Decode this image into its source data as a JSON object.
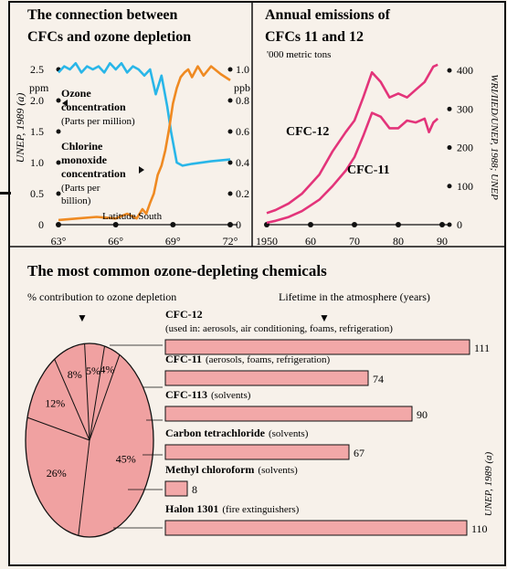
{
  "colors": {
    "background": "#f7f1ea",
    "ozone_line": "#29b6e8",
    "chlorine_line": "#ef8a22",
    "cfc_lines": "#e3347a",
    "bar_fill": "#f2a8a8",
    "pie_fill": "#f0a1a1",
    "ink": "#111111"
  },
  "panel_left": {
    "title_line1": "The connection between",
    "title_line2": "CFCs and ozone depletion",
    "source": "UNEP, 1989 (a)",
    "left_unit": "ppm",
    "right_unit": "ppb",
    "ozone_label_1": "Ozone",
    "ozone_label_2": "concentration",
    "ozone_label_3": "(Parts per million)",
    "clo_label_1": "Chlorine",
    "clo_label_2": "monoxide",
    "clo_label_3": "concentration",
    "clo_label_4": "(Parts per",
    "clo_label_5": "billion)",
    "xlabel": "Latitude South"
  },
  "panel_right": {
    "title_line1": "Annual emissions of",
    "title_line2": "CFCs 11 and 12",
    "unit": "'000 metric tons",
    "source": "WRI/IIED/UNEP, 1988; UNEP",
    "label_cfc12": "CFC-12",
    "label_cfc11": "CFC-11"
  },
  "panel_bottom": {
    "title": "The most common ozone-depleting chemicals",
    "pie_heading": "% contribution to ozone depletion",
    "bar_heading": "Lifetime in the atmosphere (years)",
    "source": "UNEP, 1989 (a)",
    "pointer": "▼"
  },
  "chart_data": [
    {
      "type": "line",
      "title": "The connection between CFCs and ozone depletion",
      "xlabel": "Latitude South",
      "x_ticks": [
        "63°",
        "66°",
        "69°",
        "72°"
      ],
      "xlim": [
        63,
        72
      ],
      "left_axis": {
        "unit": "ppm",
        "ylim": [
          0,
          2.5
        ],
        "ticks": [
          "0",
          "0.5",
          "1.0",
          "1.5",
          "2.0",
          "2.5"
        ]
      },
      "right_axis": {
        "unit": "ppb",
        "ylim": [
          0,
          1.0
        ],
        "ticks": [
          "0",
          "0.2",
          "0.4",
          "0.6",
          "0.8",
          "1.0"
        ]
      },
      "series": [
        {
          "name": "Ozone concentration",
          "axis": "left",
          "x": [
            63.0,
            63.3,
            63.6,
            63.9,
            64.2,
            64.5,
            64.8,
            65.1,
            65.4,
            65.7,
            66.0,
            66.3,
            66.6,
            66.9,
            67.2,
            67.5,
            67.8,
            68.1,
            68.4,
            68.7,
            68.9,
            69.2,
            69.5,
            70.0,
            71.0,
            72.0
          ],
          "y": [
            2.45,
            2.55,
            2.5,
            2.6,
            2.45,
            2.55,
            2.5,
            2.55,
            2.45,
            2.6,
            2.5,
            2.6,
            2.45,
            2.55,
            2.5,
            2.4,
            2.5,
            2.1,
            2.4,
            1.9,
            1.5,
            1.0,
            0.95,
            0.98,
            1.02,
            1.05
          ]
        },
        {
          "name": "Chlorine monoxide concentration",
          "axis": "right",
          "x": [
            63.0,
            64.0,
            65.0,
            66.0,
            66.6,
            67.1,
            67.4,
            67.6,
            67.8,
            68.0,
            68.2,
            68.4,
            68.6,
            68.8,
            69.0,
            69.2,
            69.4,
            69.6,
            69.8,
            70.0,
            70.3,
            70.6,
            71.0,
            71.5,
            72.0
          ],
          "y": [
            0.03,
            0.04,
            0.05,
            0.04,
            0.07,
            0.04,
            0.1,
            0.07,
            0.14,
            0.2,
            0.32,
            0.38,
            0.48,
            0.62,
            0.78,
            0.88,
            0.95,
            0.98,
            1.0,
            0.95,
            1.02,
            0.96,
            1.02,
            0.97,
            0.93
          ]
        }
      ]
    },
    {
      "type": "line",
      "title": "Annual emissions of CFCs 11 and 12",
      "ylabel": "'000 metric tons",
      "x_ticks": [
        "1950",
        "60",
        "70",
        "80",
        "90"
      ],
      "xlim": [
        1950,
        1990
      ],
      "y_ticks": [
        "0",
        "100",
        "200",
        "300",
        "400"
      ],
      "ylim": [
        0,
        450
      ],
      "series": [
        {
          "name": "CFC-12",
          "x": [
            1950,
            1952,
            1955,
            1958,
            1960,
            1962,
            1965,
            1968,
            1970,
            1972,
            1974,
            1976,
            1978,
            1980,
            1982,
            1984,
            1986,
            1988,
            1989
          ],
          "y": [
            30,
            38,
            55,
            80,
            105,
            130,
            190,
            240,
            270,
            330,
            395,
            370,
            330,
            340,
            330,
            350,
            370,
            410,
            415
          ]
        },
        {
          "name": "CFC-11",
          "x": [
            1950,
            1952,
            1955,
            1958,
            1960,
            1962,
            1965,
            1968,
            1970,
            1972,
            1974,
            1976,
            1978,
            1980,
            1982,
            1984,
            1986,
            1987,
            1988,
            1989
          ],
          "y": [
            5,
            10,
            20,
            35,
            50,
            65,
            100,
            140,
            175,
            230,
            290,
            280,
            250,
            250,
            270,
            265,
            275,
            240,
            265,
            275
          ]
        }
      ]
    },
    {
      "type": "pie",
      "title": "% contribution to ozone depletion",
      "labels": [
        "CFC-12",
        "CFC-11",
        "CFC-113",
        "Carbon tetrachloride",
        "Methyl chloroform",
        "Halon 1301"
      ],
      "values": [
        45,
        26,
        12,
        8,
        5,
        4
      ],
      "value_labels": [
        "45%",
        "26%",
        "12%",
        "8%",
        "5%",
        "4%"
      ]
    },
    {
      "type": "bar",
      "title": "Lifetime in the atmosphere (years)",
      "categories": [
        "CFC-12",
        "CFC-11",
        "CFC-113",
        "Carbon tetrachloride",
        "Methyl chloroform",
        "Halon 1301"
      ],
      "uses": [
        "(used in: aerosols, air conditioning, foams, refrigeration)",
        "(aerosols, foams, refrigeration)",
        "(solvents)",
        "(solvents)",
        "(solvents)",
        "(fire extinguishers)"
      ],
      "values": [
        111,
        74,
        90,
        67,
        8,
        110
      ],
      "value_labels": [
        "111",
        "74",
        "90",
        "67",
        "8",
        "110"
      ]
    }
  ]
}
